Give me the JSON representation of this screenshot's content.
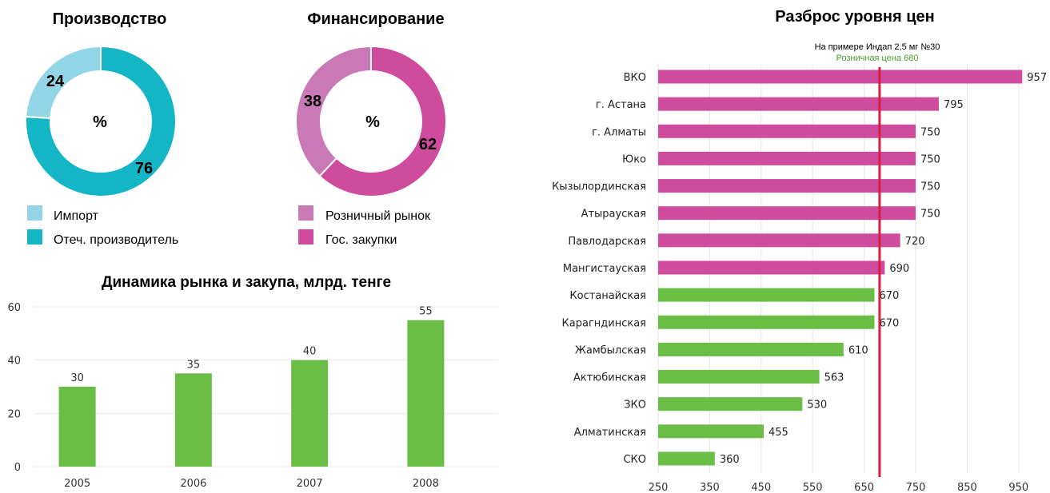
{
  "colors": {
    "import": "#92d5e6",
    "domestic": "#14b5c4",
    "retail": "#c979b6",
    "state": "#cf4b9d",
    "green": "#6abd45",
    "pink": "#cf4b9d",
    "ref_line": "#d6203d",
    "grid": "#e6e6e6"
  },
  "chart_data": [
    {
      "type": "pie",
      "title": "Производство",
      "center_label": "%",
      "slices": [
        {
          "name": "Импорт",
          "value": 24
        },
        {
          "name": "Отеч. производитель",
          "value": 76
        }
      ]
    },
    {
      "type": "pie",
      "title": "Финансирование",
      "center_label": "%",
      "slices": [
        {
          "name": "Розничный рынок",
          "value": 38
        },
        {
          "name": "Гос. закупки",
          "value": 62
        }
      ]
    },
    {
      "type": "bar",
      "title": "Динамика рынка и закупа, млрд. тенге",
      "categories": [
        "2005",
        "2006",
        "2007",
        "2008"
      ],
      "values": [
        30,
        35,
        40,
        55
      ],
      "yticks": [
        0,
        20,
        40,
        60
      ],
      "ylim": [
        0,
        60
      ],
      "grid": true
    },
    {
      "type": "bar",
      "orientation": "horizontal",
      "title": "Разброс уровня цен",
      "subtitle": "На примере Индап 2,5 мг №30",
      "reference": {
        "label": "Розничная цена 680",
        "value": 680
      },
      "categories": [
        "ВКО",
        "г. Астана",
        "г. Алматы",
        "Юко",
        "Кызылординская",
        "Атырауская",
        "Павлодарская",
        "Мангистауская",
        "Костанайская",
        "Карагндинская",
        "Жамбылская",
        "Актюбинская",
        "ЗКО",
        "Алматинская",
        "СКО"
      ],
      "values": [
        957,
        795,
        750,
        750,
        750,
        750,
        720,
        690,
        670,
        670,
        610,
        563,
        530,
        455,
        360
      ],
      "xticks": [
        250,
        350,
        450,
        550,
        650,
        750,
        850,
        950
      ],
      "xlim": [
        250,
        955
      ],
      "grid": true
    }
  ]
}
